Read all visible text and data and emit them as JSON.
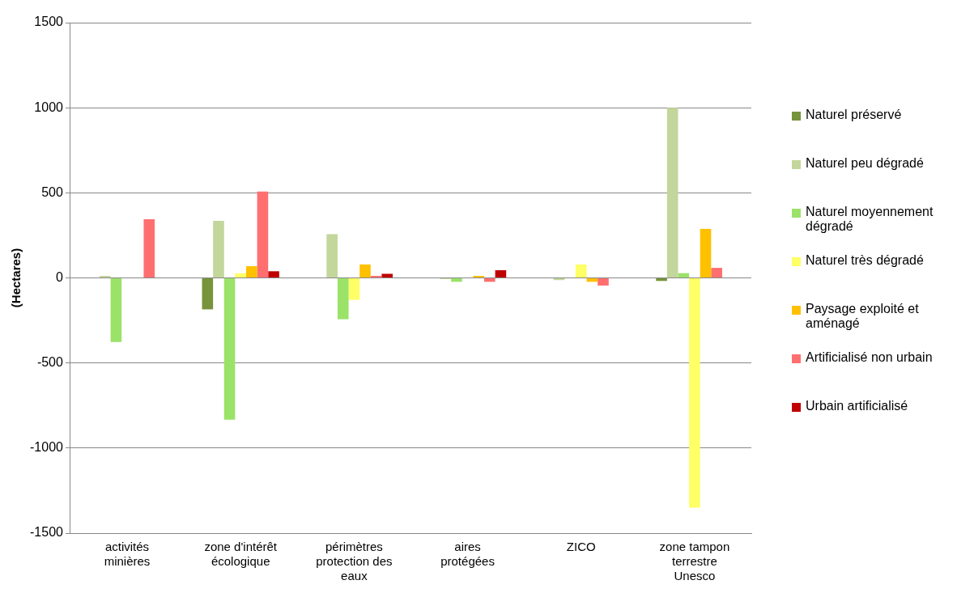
{
  "chart_data": {
    "type": "bar",
    "ylabel": "(Hectares)",
    "categories": [
      "activités minières",
      "zone d'intérêt écologique",
      "périmètres protection des eaux",
      "aires protégées",
      "ZICO",
      "zone tampon terrestre Unesco"
    ],
    "series": [
      {
        "name": "Naturel préservé",
        "color": "#77933c",
        "values": [
          0,
          -185,
          0,
          0,
          0,
          -18
        ]
      },
      {
        "name": "Naturel peu dégradé",
        "color": "#c3d69b",
        "values": [
          12,
          335,
          257,
          -7,
          -13,
          1000
        ]
      },
      {
        "name": "Naturel moyennement dégradé",
        "color": "#9be269",
        "values": [
          -377,
          -833,
          -243,
          -23,
          0,
          28
        ]
      },
      {
        "name": "Naturel très dégradé",
        "color": "#ffff66",
        "values": [
          0,
          27,
          -129,
          0,
          79,
          -1350
        ]
      },
      {
        "name": "Paysage exploité et aménagé",
        "color": "#ffc000",
        "values": [
          0,
          69,
          79,
          12,
          -23,
          288
        ]
      },
      {
        "name": "Artificialisé non urbain",
        "color": "#ff6f6f",
        "values": [
          345,
          508,
          12,
          -23,
          -45,
          59
        ]
      },
      {
        "name": "Urbain artificialisé",
        "color": "#c00000",
        "values": [
          0,
          39,
          24,
          45,
          0,
          0
        ]
      }
    ],
    "ylim": [
      -1500,
      1500
    ],
    "yticks": [
      -1500,
      -1000,
      -500,
      0,
      500,
      1000,
      1500
    ],
    "grid": "y",
    "legend": "right"
  }
}
